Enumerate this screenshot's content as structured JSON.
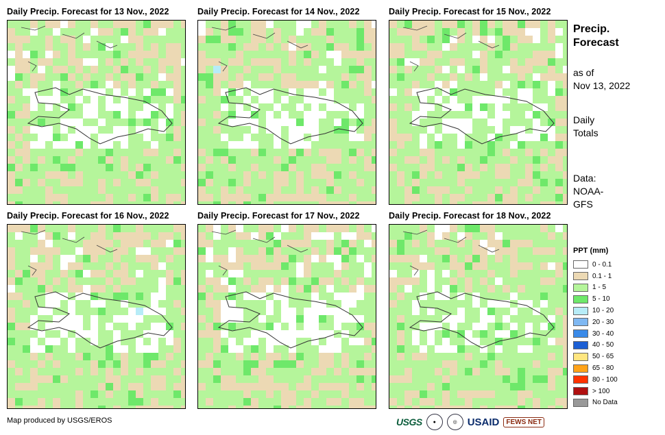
{
  "panels": [
    {
      "title": "Daily Precip. Forecast for 13 Nov., 2022",
      "seed": 13
    },
    {
      "title": "Daily Precip. Forecast for 14 Nov., 2022",
      "seed": 14
    },
    {
      "title": "Daily Precip. Forecast for 15 Nov., 2022",
      "seed": 15
    },
    {
      "title": "Daily Precip. Forecast for 16 Nov., 2022",
      "seed": 16
    },
    {
      "title": "Daily Precip. Forecast for 17 Nov., 2022",
      "seed": 17
    },
    {
      "title": "Daily Precip. Forecast for 18 Nov., 2022",
      "seed": 18
    }
  ],
  "side": {
    "title_line1": "Precip.",
    "title_line2": "Forecast",
    "asof_line1": "as of",
    "asof_line2": "Nov 13, 2022",
    "totals_line1": "Daily",
    "totals_line2": "Totals",
    "data_line1": "Data:",
    "data_line2": "NOAA-",
    "data_line3": "GFS"
  },
  "legend": {
    "title": "PPT (mm)",
    "items": [
      {
        "label": "0 - 0.1",
        "color": "#ffffff"
      },
      {
        "label": "0.1 - 1",
        "color": "#ecd9b4"
      },
      {
        "label": "1 - 5",
        "color": "#b5f59b"
      },
      {
        "label": "5 - 10",
        "color": "#6ee86a"
      },
      {
        "label": "10 - 20",
        "color": "#b7ecf7"
      },
      {
        "label": "20 - 30",
        "color": "#7fb8f2"
      },
      {
        "label": "30 - 40",
        "color": "#3a8ae8"
      },
      {
        "label": "40 - 50",
        "color": "#1c5fd4"
      },
      {
        "label": "50 - 65",
        "color": "#ffe680"
      },
      {
        "label": "65 - 80",
        "color": "#ffa31a"
      },
      {
        "label": "80 - 100",
        "color": "#ff3300"
      },
      {
        "label": "> 100",
        "color": "#b01010"
      },
      {
        "label": "No Data",
        "color": "#999999"
      }
    ]
  },
  "credit": "Map produced by USGS/EROS",
  "logos": {
    "usgs": "USGS",
    "usaid": "USAID",
    "fews": "FEWS NET"
  }
}
